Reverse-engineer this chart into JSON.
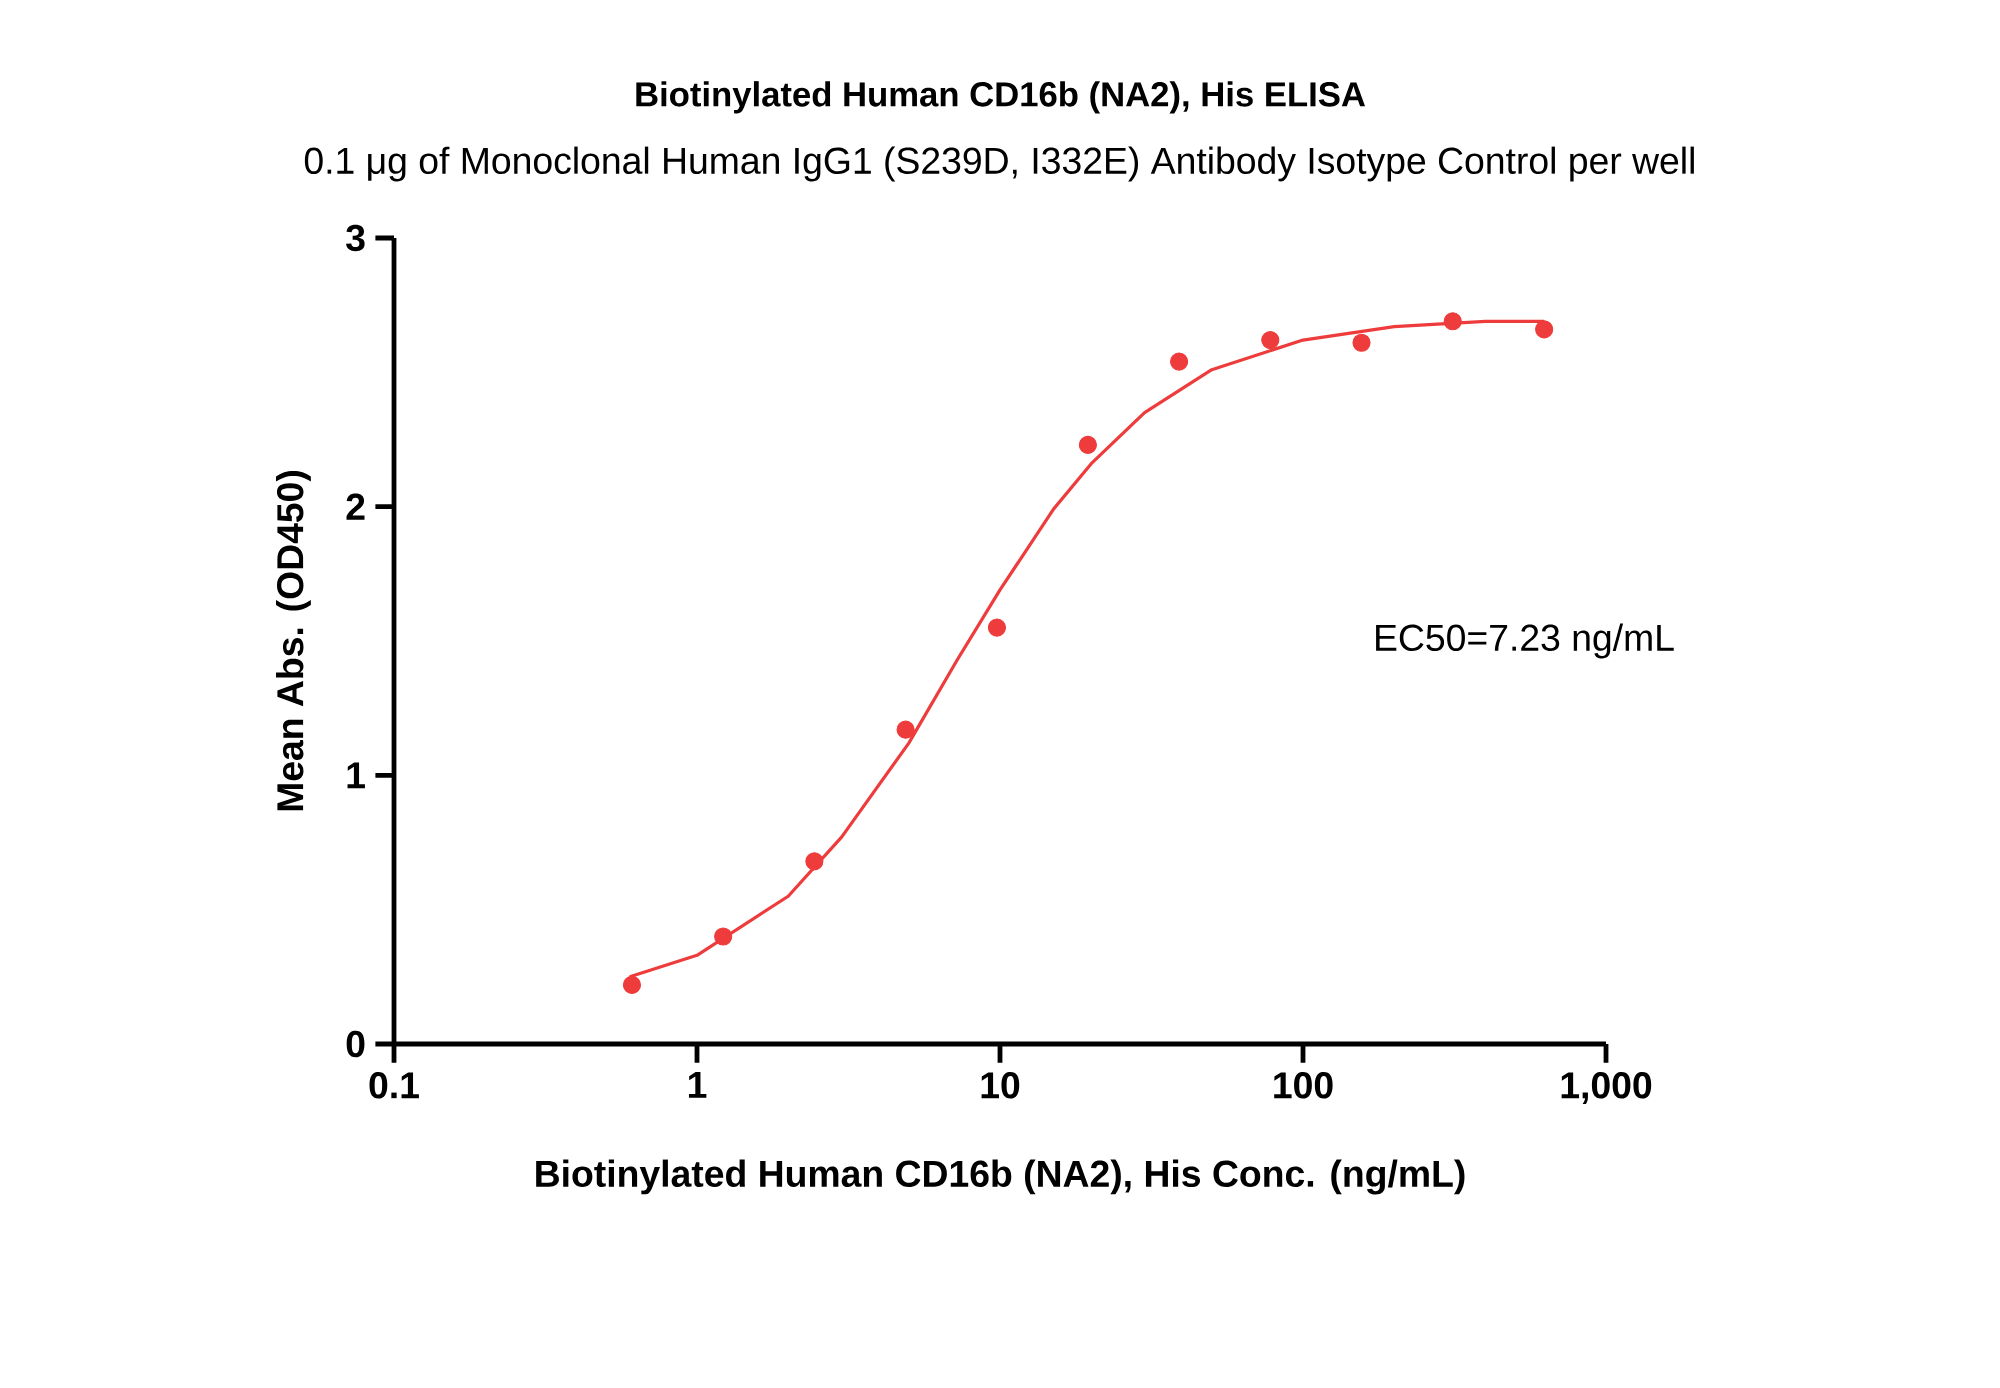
{
  "chart_data": {
    "type": "scatter",
    "title": "Biotinylated Human CD16b (NA2), His ELISA",
    "subtitle": "0.1 μg of Monoclonal Human IgG1 (S239D, I332E) Antibody Isotype Control per well",
    "xlabel": "Biotinylated Human CD16b (NA2), His Conc. (ng/mL)",
    "ylabel": "Mean Abs. (OD450)",
    "annotations": [
      "EC50=7.23 ng/mL"
    ],
    "log": "x",
    "grid": false,
    "xlim": [
      0.1,
      1000
    ],
    "ylim": [
      0,
      3
    ],
    "xticks": [
      0.1,
      1,
      10,
      100,
      {
        "value": 1000,
        "label": "1,000"
      }
    ],
    "yticks": [
      0,
      1,
      2,
      3
    ],
    "series": [
      {
        "marker": "circle",
        "color": "#ee3b3b",
        "x": [
          0.61,
          1.22,
          2.44,
          4.88,
          9.77,
          19.5,
          39,
          78,
          156,
          312,
          625
        ],
        "values": [
          0.22,
          0.4,
          0.68,
          1.17,
          1.55,
          2.23,
          2.54,
          2.62,
          2.61,
          2.69,
          2.66
        ]
      },
      {
        "type": "line",
        "marker": "none",
        "color": "#ee3b3b",
        "x": [
          0.6,
          1,
          2,
          3,
          5,
          7.23,
          10,
          15,
          20,
          30,
          50,
          100,
          200,
          400,
          625
        ],
        "values": [
          0.25,
          0.33,
          0.55,
          0.77,
          1.12,
          1.43,
          1.69,
          1.99,
          2.16,
          2.35,
          2.51,
          2.62,
          2.67,
          2.69,
          2.69
        ]
      }
    ]
  }
}
